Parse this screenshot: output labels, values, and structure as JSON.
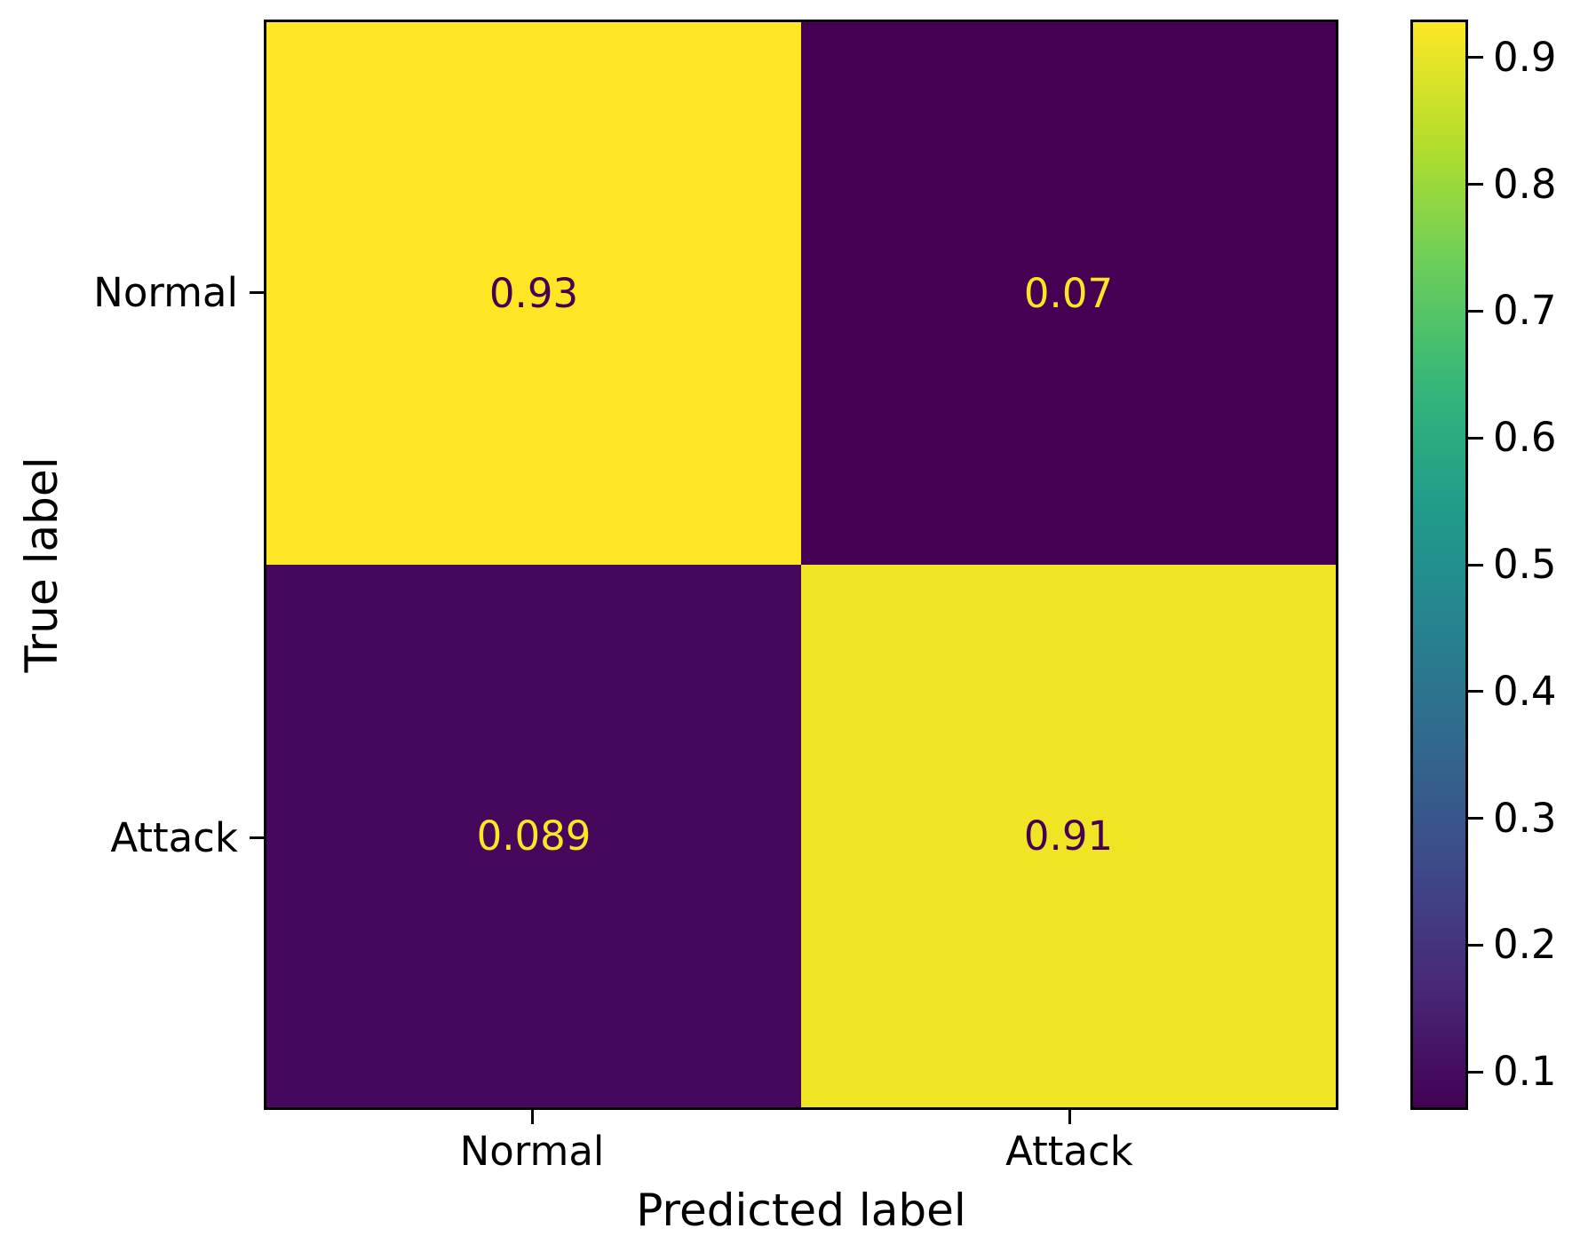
{
  "figure": {
    "background_color": "#ffffff",
    "axis_color": "#000000"
  },
  "chart_data": {
    "type": "heatmap",
    "subtype": "confusion-matrix",
    "title": "",
    "xlabel": "Predicted label",
    "ylabel": "True label",
    "x_categories": [
      "Normal",
      "Attack"
    ],
    "y_categories": [
      "Normal",
      "Attack"
    ],
    "matrix": [
      [
        0.93,
        0.07
      ],
      [
        0.089,
        0.91
      ]
    ],
    "cell_labels": [
      [
        "0.93",
        "0.07"
      ],
      [
        "0.089",
        "0.91"
      ]
    ],
    "cell_colors": [
      [
        "#fde725",
        "#440154"
      ],
      [
        "#46085c",
        "#f0e525"
      ]
    ],
    "cell_text_colors": [
      [
        "#440154",
        "#fde725"
      ],
      [
        "#fde725",
        "#440154"
      ]
    ],
    "colormap": "viridis",
    "grid": false,
    "legend_position": "none",
    "colorbar": {
      "position": "right",
      "vmin": 0.07,
      "vmax": 0.93,
      "ticks": [
        0.9,
        0.8,
        0.7,
        0.6,
        0.5,
        0.4,
        0.3,
        0.2,
        0.1
      ],
      "tick_labels": [
        "0.9",
        "0.8",
        "0.7",
        "0.6",
        "0.5",
        "0.4",
        "0.3",
        "0.2",
        "0.1"
      ],
      "gradient_stops": [
        {
          "pos": 0.0,
          "color": "#440154"
        },
        {
          "pos": 0.111,
          "color": "#482878"
        },
        {
          "pos": 0.222,
          "color": "#3e4a89"
        },
        {
          "pos": 0.333,
          "color": "#31688e"
        },
        {
          "pos": 0.444,
          "color": "#26838f"
        },
        {
          "pos": 0.556,
          "color": "#1f9d8a"
        },
        {
          "pos": 0.667,
          "color": "#36b778"
        },
        {
          "pos": 0.778,
          "color": "#6cce5a"
        },
        {
          "pos": 0.889,
          "color": "#b4de2c"
        },
        {
          "pos": 1.0,
          "color": "#fde725"
        }
      ]
    }
  }
}
